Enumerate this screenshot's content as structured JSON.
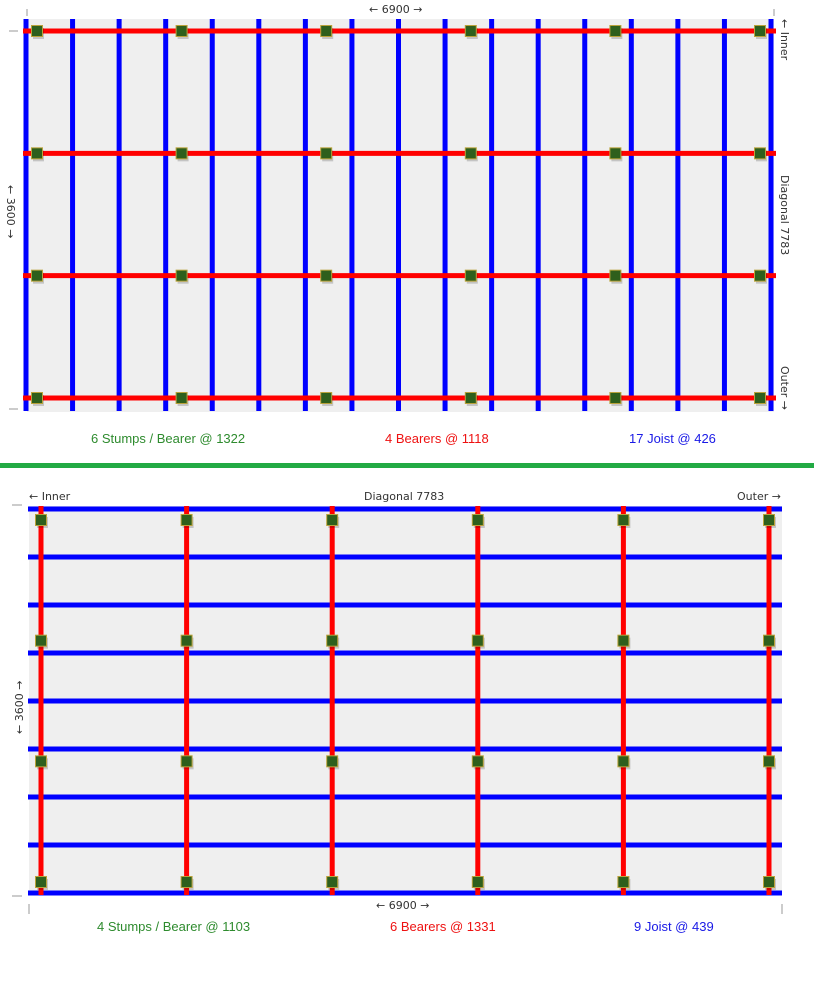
{
  "colors": {
    "deck_fill": "#efefef",
    "bearer": "#ff0000",
    "joist": "#0000ff",
    "stump_fill": "#2e5f1c",
    "stump_stroke": "#b9a23a",
    "stumps_label": "#2e8b2e",
    "bearers_label": "#ee1111",
    "joists_label": "#1a1ae6",
    "divider": "#22aa44"
  },
  "layout_a": {
    "length_label": "← 6900 →",
    "width_label": "← 3600 →",
    "inner_label": "← Inner",
    "outer_label": "Outer →",
    "diagonal_label": "Diagonal  7783",
    "stumps_caption": "6 Stumps / Bearer @ 1322",
    "bearers_caption": "4 Bearers @ 1118",
    "joists_caption": "17 Joist @ 426",
    "bearer_count": 4,
    "stumps_per_bearer": 6,
    "joist_count": 17
  },
  "layout_b": {
    "length_label": "← 6900 →",
    "width_label": "← 3600 →",
    "inner_label": "← Inner",
    "outer_label": "Outer →",
    "diagonal_label": "Diagonal  7783",
    "stumps_caption": "4 Stumps / Bearer @ 1103",
    "bearers_caption": "6 Bearers @ 1331",
    "joists_caption": "9 Joist @ 439",
    "bearer_count": 6,
    "stumps_per_bearer": 4,
    "joist_count": 9
  }
}
